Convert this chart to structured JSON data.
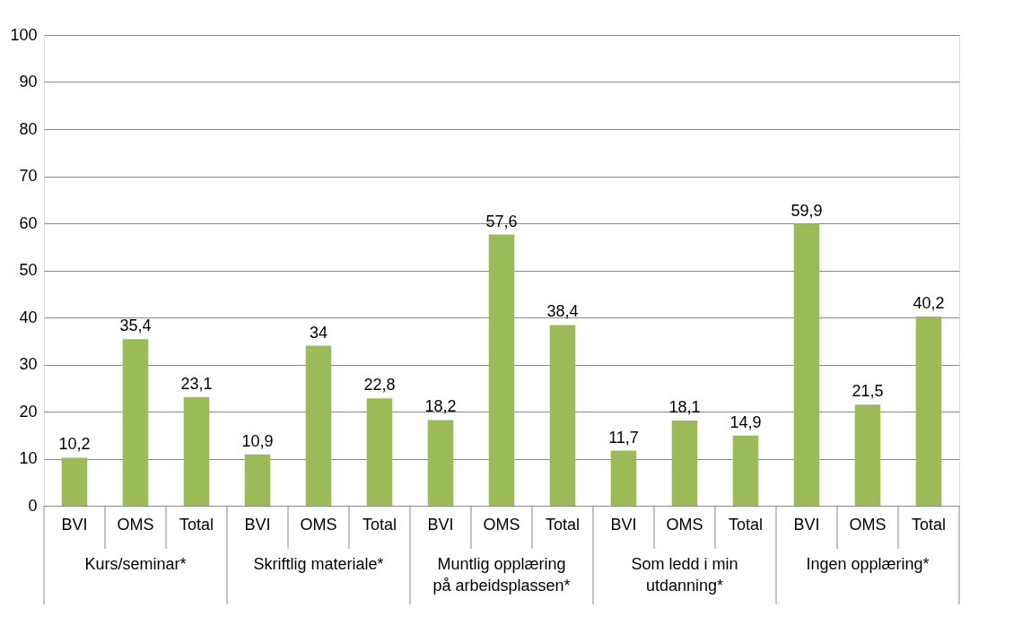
{
  "chart_data": {
    "type": "bar",
    "categories": [
      "BVI",
      "OMS",
      "Total",
      "BVI",
      "OMS",
      "Total",
      "BVI",
      "OMS",
      "Total",
      "BVI",
      "OMS",
      "Total",
      "BVI",
      "OMS",
      "Total"
    ],
    "values": [
      10.2,
      35.4,
      23.1,
      10.9,
      34,
      22.8,
      18.2,
      57.6,
      38.4,
      11.7,
      18.1,
      14.9,
      59.9,
      21.5,
      40.2
    ],
    "color": "#9bbb59",
    "ylim": [
      0,
      100
    ],
    "yticks": [
      0,
      10,
      20,
      30,
      40,
      50,
      60,
      70,
      80,
      90,
      100
    ],
    "grid": "y",
    "value_labels": [
      "10,2",
      "35,4",
      "23,1",
      "10,9",
      "34",
      "22,8",
      "18,2",
      "57,6",
      "38,4",
      "11,7",
      "18,1",
      "14,9",
      "59,9",
      "21,5",
      "40,2"
    ],
    "annotations": [
      "Kurs/seminar*",
      "Skriftlig materiale*",
      "Muntlig opplæring\npå arbeidsplassen*",
      "Som ledd i min\nutdanning*",
      "Ingen opplæring*"
    ]
  }
}
